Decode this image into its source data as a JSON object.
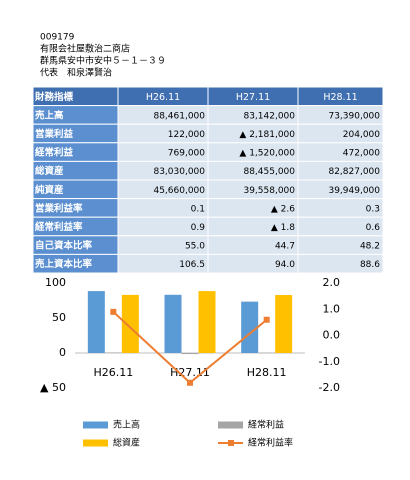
{
  "header": {
    "code": "009179",
    "company": "有限会社屋敷治二商店",
    "address": "群馬県安中市安中５－１－３９",
    "representative": "代表　和泉澤賢治"
  },
  "table": {
    "header": [
      "財務指標",
      "H26.11",
      "H27.11",
      "H28.11"
    ],
    "rows": [
      [
        "売上高",
        "88,461,000",
        "83,142,000",
        "73,390,000"
      ],
      [
        "営業利益",
        "122,000",
        "▲ 2,181,000",
        "204,000"
      ],
      [
        "経常利益",
        "769,000",
        "▲ 1,520,000",
        "472,000"
      ],
      [
        "総資産",
        "83,030,000",
        "88,455,000",
        "82,827,000"
      ],
      [
        "純資産",
        "45,660,000",
        "39,558,000",
        "39,949,000"
      ],
      [
        "営業利益率",
        "0.1",
        "▲ 2.6",
        "0.3"
      ],
      [
        "経常利益率",
        "0.9",
        "▲ 1.8",
        "0.6"
      ],
      [
        "自己資本比率",
        "55.0",
        "44.7",
        "48.2"
      ],
      [
        "売上資本比率",
        "106.5",
        "94.0",
        "88.6"
      ]
    ]
  },
  "chart_data": {
    "type": "bar",
    "categories": [
      "H26.11",
      "H27.11",
      "H28.11"
    ],
    "series": [
      {
        "name": "売上高",
        "color": "#5b9bd5",
        "values": [
          88.461,
          83.142,
          73.39
        ]
      },
      {
        "name": "経常利益",
        "color": "#a5a5a5",
        "values": [
          0.769,
          -1.52,
          0.472
        ]
      },
      {
        "name": "総資産",
        "color": "#ffc000",
        "values": [
          83.03,
          88.455,
          82.827
        ]
      },
      {
        "name": "経常利益率",
        "color": "#ed7d31",
        "type": "line",
        "axis": "y2",
        "values": [
          0.9,
          -1.8,
          0.6
        ]
      }
    ],
    "ylim": [
      -50,
      100
    ],
    "yticks": [
      {
        "value": -50,
        "label": "▲ 50"
      },
      0,
      50,
      100
    ],
    "y2lim": [
      -2,
      2
    ],
    "y2ticks": [
      {
        "value": -2,
        "label": "-2.0"
      },
      {
        "value": -1,
        "label": "-1.0"
      },
      {
        "value": 0,
        "label": "0.0"
      },
      {
        "value": 1,
        "label": "1.0"
      },
      {
        "value": 2,
        "label": "2.0"
      }
    ],
    "grid": false
  }
}
